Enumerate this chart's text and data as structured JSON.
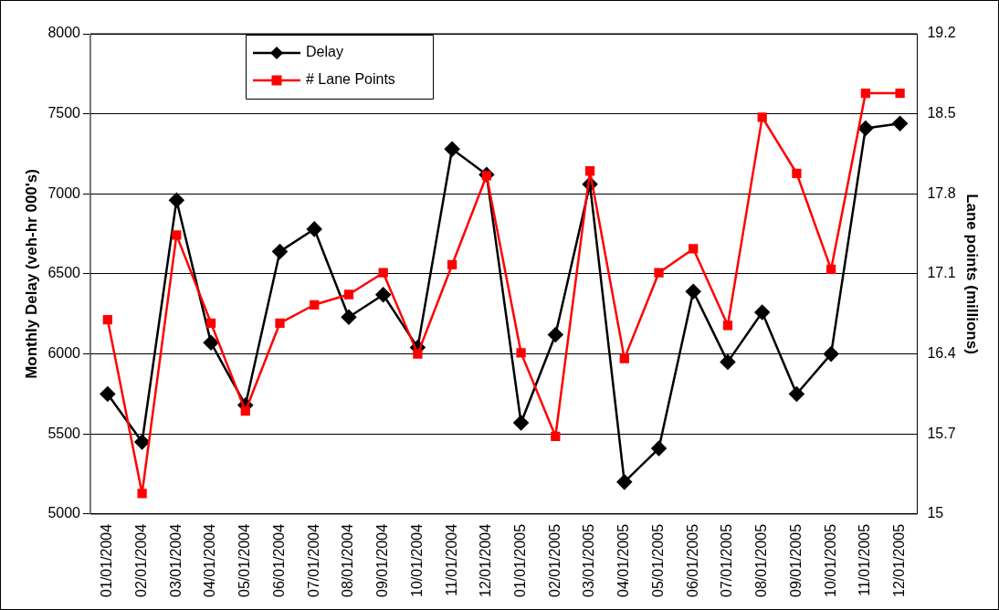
{
  "chart_data": {
    "type": "line",
    "xlabel": null,
    "ylabel": "Monthly Delay (veh-hr 000's)",
    "y2label": "Lane points (millions)",
    "categories": [
      "01/01/2004",
      "02/01/2004",
      "03/01/2004",
      "04/01/2004",
      "05/01/2004",
      "06/01/2004",
      "07/01/2004",
      "08/01/2004",
      "09/01/2004",
      "10/01/2004",
      "11/01/2004",
      "12/01/2004",
      "01/01/2005",
      "02/01/2005",
      "03/01/2005",
      "04/01/2005",
      "05/01/2005",
      "06/01/2005",
      "07/01/2005",
      "08/01/2005",
      "09/01/2005",
      "10/01/2005",
      "11/01/2005",
      "12/01/2005"
    ],
    "series": [
      {
        "name": "Delay",
        "color": "#000000",
        "marker": "diamond",
        "values": [
          5750,
          5450,
          6960,
          6070,
          5680,
          6640,
          6780,
          6230,
          6370,
          6040,
          7280,
          7120,
          5570,
          6120,
          7060,
          5200,
          5410,
          6390,
          5950,
          6260,
          5750,
          6000,
          7410,
          7440
        ]
      },
      {
        "name": "# Lane Points",
        "color": "#ff0000",
        "marker": "square",
        "axis": "y2",
        "values": [
          16.7,
          15.18,
          17.44,
          16.67,
          15.9,
          16.67,
          16.83,
          16.92,
          17.11,
          16.4,
          17.18,
          17.96,
          16.41,
          15.68,
          18.0,
          16.36,
          17.11,
          17.32,
          16.65,
          18.47,
          17.98,
          17.14,
          18.68,
          18.68
        ]
      }
    ],
    "ylim": [
      5000,
      8000
    ],
    "yticks": [
      5000,
      5500,
      6000,
      6500,
      7000,
      7500,
      8000
    ],
    "y2lim": [
      15,
      19.2
    ],
    "y2ticks": [
      15,
      15.7,
      16.4,
      17.1,
      17.8,
      18.5,
      19.2
    ],
    "grid": "y",
    "legend": "top left",
    "line_style": "solid"
  }
}
